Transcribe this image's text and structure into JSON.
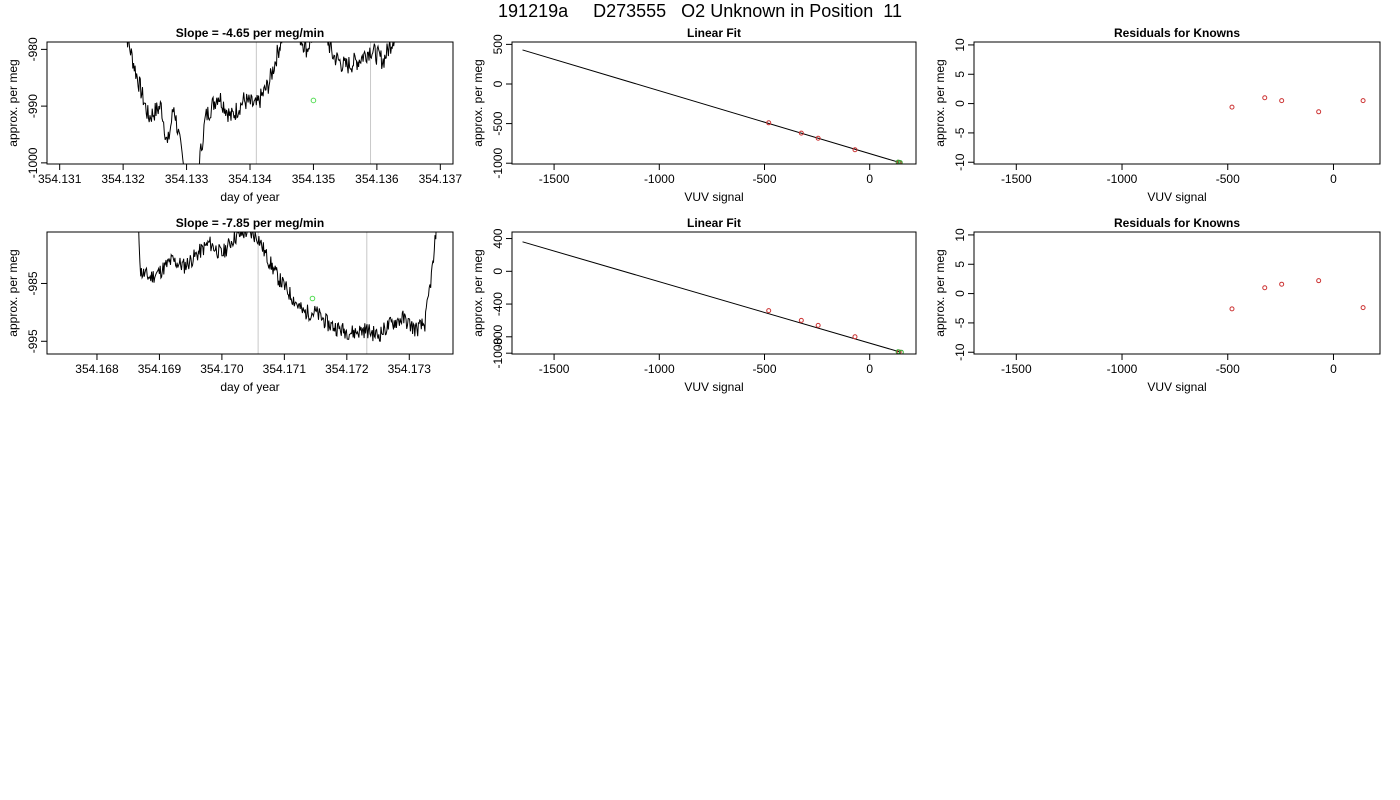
{
  "page_title": "191219a     D273555   O2 Unknown in Position  11",
  "chart_data": [
    {
      "type": "line",
      "panel": "time-series-1",
      "title": "Slope =  -4.65  per meg/min",
      "xlabel": "day of year",
      "ylabel": "approx. per meg",
      "xlim": [
        354.1308,
        354.1372
      ],
      "ylim": [
        -1000.2,
        -978.7
      ],
      "xticks": [
        354.131,
        354.132,
        354.133,
        354.134,
        354.135,
        354.136,
        354.137
      ],
      "xtick_labels": [
        "354.131",
        "354.132",
        "354.133",
        "354.134",
        "354.135",
        "354.136",
        "354.137"
      ],
      "yticks": [
        -1000,
        -990,
        -980
      ],
      "ytick_labels": [
        "-1000",
        "-990",
        "-980"
      ],
      "vlines": [
        354.1341,
        354.1359
      ],
      "anchors": [
        [
          354.132,
          -975
        ],
        [
          354.1322,
          -984
        ],
        [
          354.1324,
          -992
        ],
        [
          354.1326,
          -990
        ],
        [
          354.1327,
          -997
        ],
        [
          354.1328,
          -990
        ],
        [
          354.133,
          -1004
        ],
        [
          354.1331,
          -1010
        ],
        [
          354.1332,
          -1000
        ],
        [
          354.1333,
          -992
        ],
        [
          354.1335,
          -988
        ],
        [
          354.1337,
          -992
        ],
        [
          354.1339,
          -989
        ],
        [
          354.1341,
          -990
        ],
        [
          354.1343,
          -986
        ],
        [
          354.1345,
          -978
        ],
        [
          354.1347,
          -976
        ],
        [
          354.1349,
          -980
        ],
        [
          354.1351,
          -974
        ],
        [
          354.1353,
          -981
        ],
        [
          354.1355,
          -983
        ],
        [
          354.1357,
          -982
        ],
        [
          354.1359,
          -980
        ],
        [
          354.1361,
          -982
        ],
        [
          354.1363,
          -977
        ],
        [
          354.1365,
          -975
        ],
        [
          354.1367,
          -969
        ]
      ],
      "anchors_mid": [
        [
          354.1341,
          -990
        ],
        [
          354.1342,
          -986
        ],
        [
          354.1344,
          -979
        ],
        [
          354.1346,
          -978
        ],
        [
          354.1348,
          -981
        ],
        [
          354.135,
          -979
        ],
        [
          354.1352,
          -977
        ],
        [
          354.1354,
          -979
        ],
        [
          354.1355,
          -978
        ],
        [
          354.1356,
          -975
        ]
      ],
      "marker": {
        "x": 354.135,
        "y": -989,
        "color": "#55dd55"
      },
      "line_color": "#000000"
    },
    {
      "type": "line",
      "panel": "time-series-2",
      "title": "Slope =  -7.85  per meg/min",
      "xlabel": "day of year",
      "ylabel": "approx. per meg",
      "xlim": [
        354.1672,
        354.1737
      ],
      "ylim": [
        -997.2,
        -976.1
      ],
      "xticks": [
        354.168,
        354.169,
        354.17,
        354.171,
        354.172,
        354.173
      ],
      "xtick_labels": [
        "354.168",
        "354.169",
        "354.170",
        "354.171",
        "354.172",
        "354.173"
      ],
      "yticks": [
        -995,
        -985
      ],
      "ytick_labels": [
        "-995",
        "-985"
      ],
      "vlines": [
        354.17058,
        354.17232
      ],
      "marker": {
        "x": 354.17145,
        "y": -987.6,
        "color": "#55dd55"
      },
      "line_color": "#000000"
    },
    {
      "type": "scatter",
      "panel": "linear-fit-1",
      "title": "Linear Fit",
      "xlabel": "VUV signal",
      "ylabel": "approx. per meg",
      "xlim": [
        -1700,
        220
      ],
      "ylim": [
        -1010,
        530
      ],
      "xticks": [
        -1500,
        -1000,
        -500,
        0
      ],
      "xtick_labels": [
        "-1500",
        "-1000",
        "-500",
        "0"
      ],
      "yticks": [
        -1000,
        -500,
        0,
        500
      ],
      "ytick_labels": [
        "-1000",
        "-500",
        "0",
        "500"
      ],
      "fit_line": {
        "x": [
          -1650,
          140
        ],
        "y": [
          430,
          -990
        ]
      },
      "points": [
        [
          -480,
          -490
        ],
        [
          -325,
          -620
        ],
        [
          -245,
          -685
        ],
        [
          -70,
          -830
        ],
        [
          140,
          -990
        ]
      ],
      "unknown_points": [
        [
          135,
          -987
        ],
        [
          145,
          -992
        ]
      ],
      "point_color": "#cc3333",
      "unknown_color": "#33aa33"
    },
    {
      "type": "scatter",
      "panel": "residuals-1",
      "title": "Residuals for Knowns",
      "xlabel": "VUV signal",
      "ylabel": "approx. per meg",
      "xlim": [
        -1700,
        220
      ],
      "ylim": [
        -10.3,
        10.5
      ],
      "xticks": [
        -1500,
        -1000,
        -500,
        0
      ],
      "xtick_labels": [
        "-1500",
        "-1000",
        "-500",
        "0"
      ],
      "yticks": [
        -10,
        -5,
        0,
        5,
        10
      ],
      "ytick_labels": [
        "-10",
        "-5",
        "0",
        "5",
        "10"
      ],
      "points": [
        [
          -480,
          -0.6
        ],
        [
          -325,
          1.0
        ],
        [
          -245,
          0.5
        ],
        [
          -70,
          -1.4
        ],
        [
          140,
          0.5
        ]
      ],
      "point_color": "#cc3333"
    },
    {
      "type": "scatter",
      "panel": "linear-fit-2",
      "title": "Linear Fit",
      "xlabel": "VUV signal",
      "ylabel": "approx. per meg",
      "xlim": [
        -1700,
        220
      ],
      "ylim": [
        -1010,
        480
      ],
      "xticks": [
        -1500,
        -1000,
        -500,
        0
      ],
      "xtick_labels": [
        "-1500",
        "-1000",
        "-500",
        "0"
      ],
      "yticks": [
        -1000,
        -800,
        -400,
        0,
        400
      ],
      "ytick_labels": [
        "-1000",
        "-800",
        "-400",
        "0",
        "400"
      ],
      "fit_line": {
        "x": [
          -1650,
          150
        ],
        "y": [
          360,
          -990
        ]
      },
      "points": [
        [
          -480,
          -480
        ],
        [
          -325,
          -600
        ],
        [
          -245,
          -660
        ],
        [
          -70,
          -800
        ],
        [
          140,
          -985
        ]
      ],
      "unknown_points": [
        [
          135,
          -983
        ],
        [
          150,
          -988
        ]
      ],
      "point_color": "#cc3333",
      "unknown_color": "#33aa33"
    },
    {
      "type": "scatter",
      "panel": "residuals-2",
      "title": "Residuals for Knowns",
      "xlabel": "VUV signal",
      "ylabel": "approx. per meg",
      "xlim": [
        -1700,
        220
      ],
      "ylim": [
        -10.3,
        10.5
      ],
      "xticks": [
        -1500,
        -1000,
        -500,
        0
      ],
      "xtick_labels": [
        "-1500",
        "-1000",
        "-500",
        "0"
      ],
      "yticks": [
        -10,
        -5,
        0,
        5,
        10
      ],
      "ytick_labels": [
        "-10",
        "-5",
        "0",
        "5",
        "10"
      ],
      "points": [
        [
          -480,
          -2.6
        ],
        [
          -325,
          1.0
        ],
        [
          -245,
          1.6
        ],
        [
          -70,
          2.2
        ],
        [
          140,
          -2.4
        ]
      ],
      "point_color": "#cc3333"
    }
  ]
}
